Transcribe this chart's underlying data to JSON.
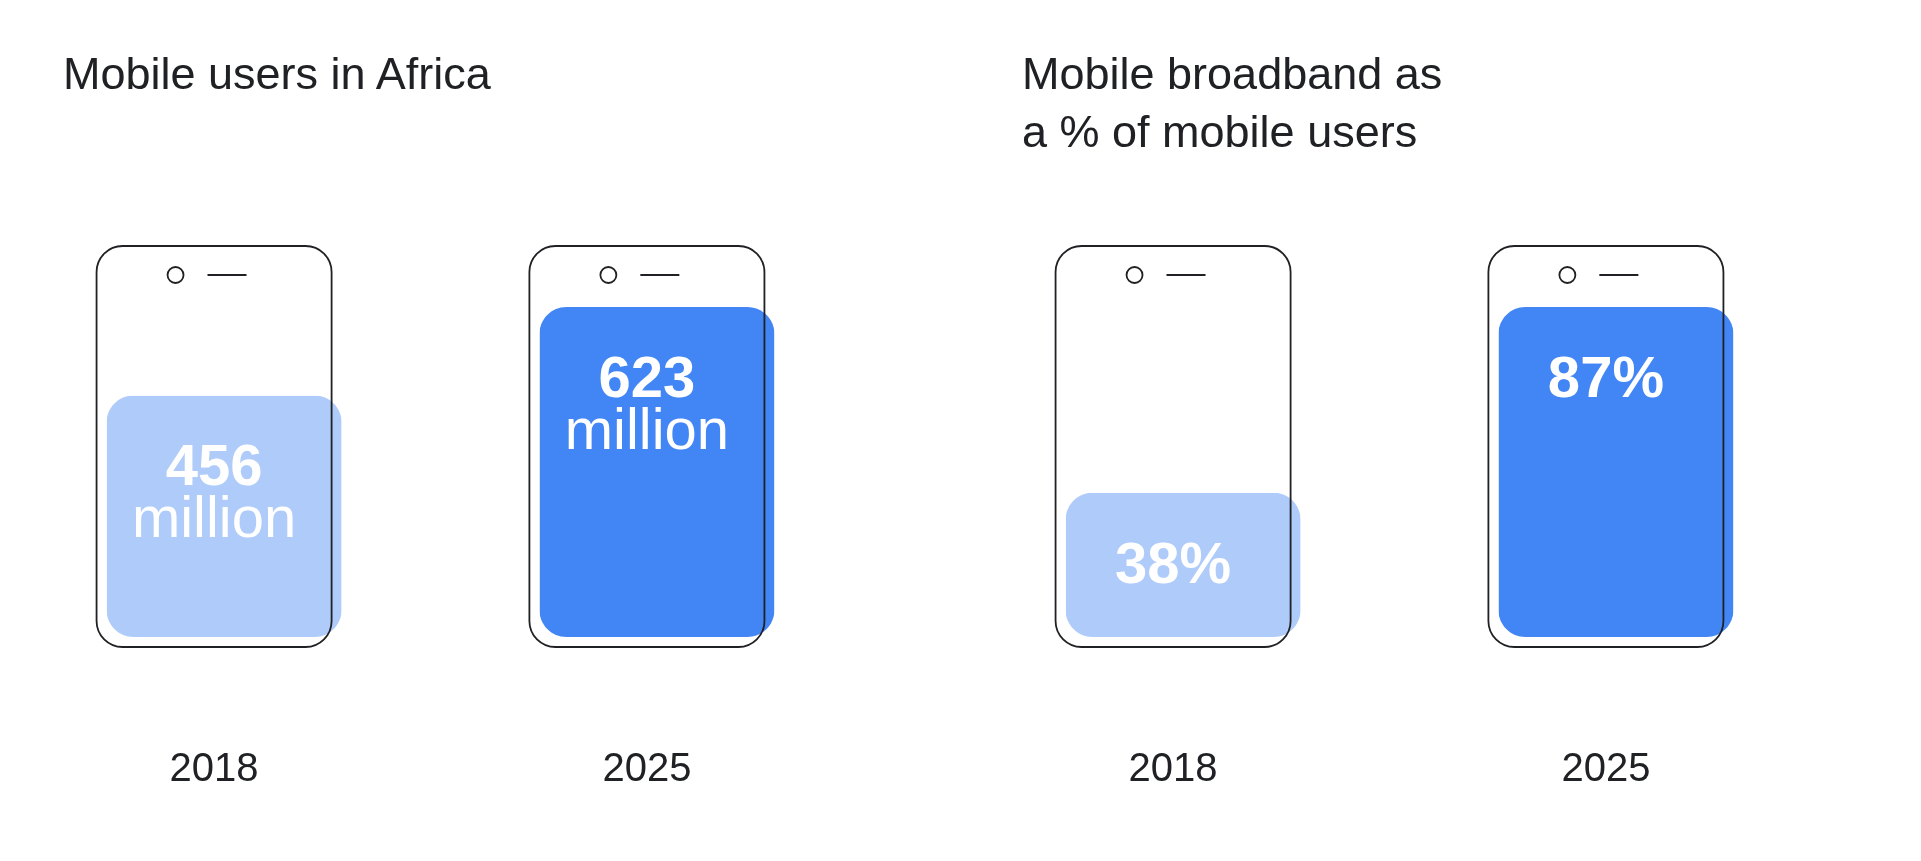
{
  "chart_data": [
    {
      "type": "bar",
      "title": "Mobile users in Africa",
      "categories": [
        "2018",
        "2025"
      ],
      "values": [
        456,
        623
      ],
      "colors": [
        "#aecbfa",
        "#4285f4"
      ],
      "value_labels": [
        "456 million",
        "623 million"
      ]
    },
    {
      "type": "bar",
      "title": "Mobile broadband as a % of mobile users",
      "categories": [
        "2018",
        "2025"
      ],
      "values": [
        38,
        87
      ],
      "colors": [
        "#aecbfa",
        "#4285f4"
      ],
      "value_labels": [
        "38%",
        "87%"
      ]
    }
  ]
}
